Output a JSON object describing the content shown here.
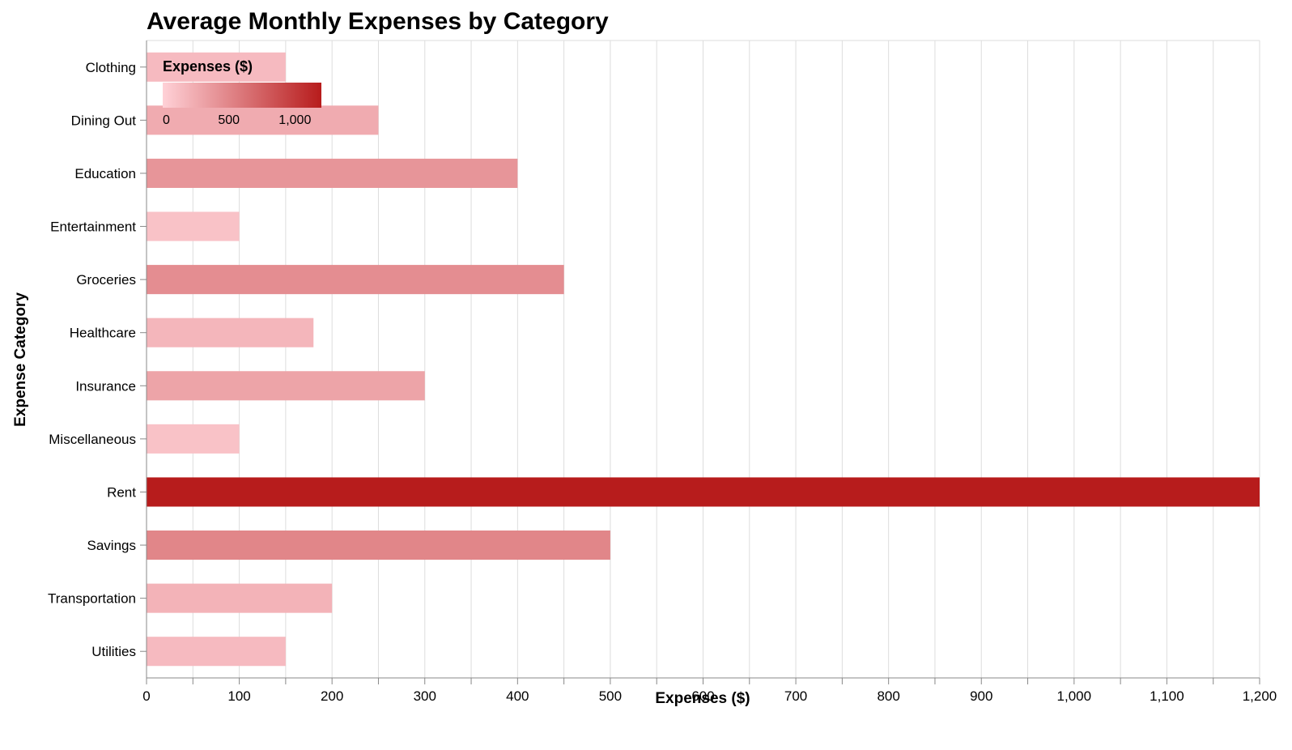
{
  "chart_data": {
    "type": "bar",
    "orientation": "horizontal",
    "title": "Average Monthly Expenses by Category",
    "xlabel": "Expenses ($)",
    "ylabel": "Expense Category",
    "xlim": [
      0,
      1200
    ],
    "x_ticks": [
      0,
      100,
      200,
      300,
      400,
      500,
      600,
      700,
      800,
      900,
      1000,
      1100,
      1200
    ],
    "x_tick_labels": [
      "0",
      "100",
      "200",
      "300",
      "400",
      "500",
      "600",
      "700",
      "800",
      "900",
      "1,000",
      "1,100",
      "1,200"
    ],
    "grid": true,
    "categories": [
      "Clothing",
      "Dining Out",
      "Education",
      "Entertainment",
      "Groceries",
      "Healthcare",
      "Insurance",
      "Miscellaneous",
      "Rent",
      "Savings",
      "Transportation",
      "Utilities"
    ],
    "values": [
      150,
      250,
      400,
      100,
      450,
      180,
      300,
      100,
      1200,
      500,
      200,
      150
    ],
    "color_scale": {
      "domain": [
        0,
        1200
      ],
      "range": [
        "#ffd1d7",
        "#b71c1c"
      ]
    },
    "legend": {
      "title": "Expenses ($)",
      "placement": "top-left",
      "ticks": [
        0,
        500,
        1000
      ],
      "tick_labels": [
        "0",
        "500",
        "1,000"
      ]
    }
  }
}
